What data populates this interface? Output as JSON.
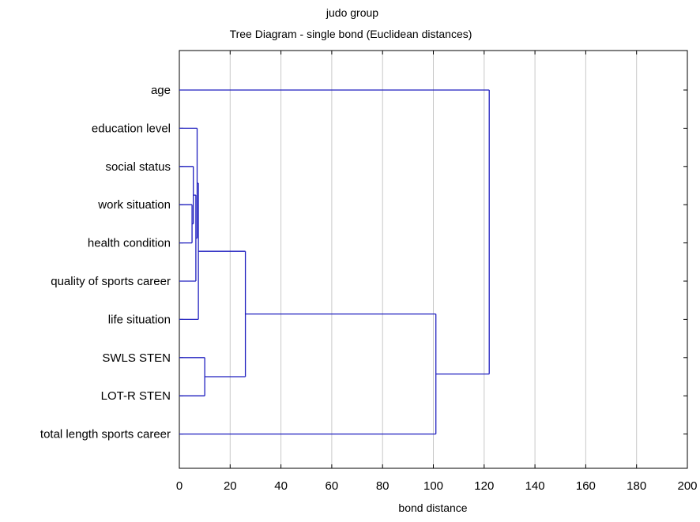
{
  "chart_data": {
    "type": "dendrogram",
    "title": "judo group",
    "subtitle": "Tree Diagram - single bond (Euclidean distances)",
    "xlabel": "bond distance",
    "xlim": [
      0,
      200
    ],
    "xticks": [
      0,
      20,
      40,
      60,
      80,
      100,
      120,
      140,
      160,
      180,
      200
    ],
    "grid": true,
    "line_color": "#1f1fbf",
    "grid_color": "#c8c8c8",
    "leaves": [
      "age",
      "education level",
      "social status",
      "work situation",
      "health condition",
      "quality of sports career",
      "life situation",
      "SWLS STEN",
      "LOT-R STEN",
      "total length sports career"
    ],
    "merges": [
      {
        "left": "L3",
        "right": "L4",
        "height": 5.0,
        "id": "C1"
      },
      {
        "left": "L2",
        "right": "C1",
        "height": 5.5,
        "id": "C2"
      },
      {
        "left": "C2",
        "right": "L5",
        "height": 6.5,
        "id": "C3"
      },
      {
        "left": "L1",
        "right": "C3",
        "height": 7.0,
        "id": "C4"
      },
      {
        "left": "C4",
        "right": "L6",
        "height": 7.5,
        "id": "C5"
      },
      {
        "left": "L7",
        "right": "L8",
        "height": 10.0,
        "id": "C6"
      },
      {
        "left": "C5",
        "right": "C6",
        "height": 26.0,
        "id": "C7"
      },
      {
        "left": "C7",
        "right": "L9",
        "height": 101.0,
        "id": "C8"
      },
      {
        "left": "L0",
        "right": "C8",
        "height": 122.0,
        "id": "C9"
      }
    ]
  }
}
